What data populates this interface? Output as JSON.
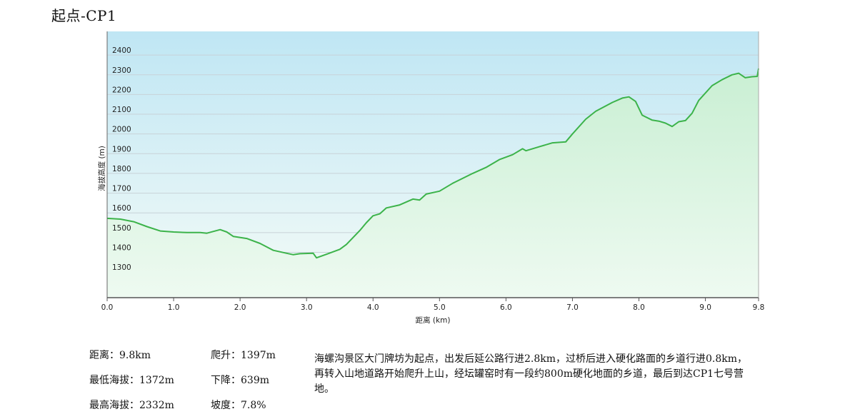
{
  "header": {
    "title": "起点-CP1"
  },
  "stats": {
    "distance": "距离：9.8km",
    "climb": "爬升：1397m",
    "min_elevation": "最低海拔：1372m",
    "descent": "下降：639m",
    "max_elevation": "最高海拔：2332m",
    "grade": "坡度：7.8%"
  },
  "description": "海螺沟景区大门牌坊为起点，出发后延公路行进2.8km，过桥后进入硬化路面的乡道行进0.8km，再转入山地道路开始爬升上山，经坛罐窑时有一段约800m硬化地面的乡道，最后到达CP1七号营地。",
  "colors": {
    "line": "#3cb34a",
    "grid": "#c8d2d8",
    "sky_top": "#bfe6f4",
    "ground_bottom": "#e9f8ec"
  },
  "chart_data": {
    "type": "area",
    "xlabel": "距离 (km)",
    "ylabel": "海拔高度 (m)",
    "xlim": [
      0,
      9.8
    ],
    "ylim": [
      1170,
      2520
    ],
    "x_ticks": [
      {
        "v": 0,
        "label": "0.0"
      },
      {
        "v": 1,
        "label": "1.0"
      },
      {
        "v": 2,
        "label": "2.0"
      },
      {
        "v": 3,
        "label": "3.0"
      },
      {
        "v": 4,
        "label": "4.0"
      },
      {
        "v": 5,
        "label": "5.0"
      },
      {
        "v": 6,
        "label": "6.0"
      },
      {
        "v": 7,
        "label": "7.0"
      },
      {
        "v": 8,
        "label": "8.0"
      },
      {
        "v": 9,
        "label": "9.0"
      },
      {
        "v": 9.8,
        "label": "9.8"
      }
    ],
    "y_ticks": [
      {
        "v": 1300,
        "label": "1300"
      },
      {
        "v": 1400,
        "label": "1400"
      },
      {
        "v": 1500,
        "label": "1500"
      },
      {
        "v": 1600,
        "label": "1600"
      },
      {
        "v": 1700,
        "label": "1700"
      },
      {
        "v": 1800,
        "label": "1800"
      },
      {
        "v": 1900,
        "label": "1900"
      },
      {
        "v": 2000,
        "label": "2000"
      },
      {
        "v": 2100,
        "label": "2100"
      },
      {
        "v": 2200,
        "label": "2200"
      },
      {
        "v": 2300,
        "label": "2300"
      },
      {
        "v": 2400,
        "label": "2400"
      }
    ],
    "grid": true,
    "series": [
      {
        "points": [
          [
            0,
            1572
          ],
          [
            0.2,
            1568
          ],
          [
            0.4,
            1555
          ],
          [
            0.6,
            1530
          ],
          [
            0.8,
            1508
          ],
          [
            1.0,
            1503
          ],
          [
            1.2,
            1500
          ],
          [
            1.4,
            1500
          ],
          [
            1.5,
            1497
          ],
          [
            1.7,
            1515
          ],
          [
            1.8,
            1503
          ],
          [
            1.9,
            1480
          ],
          [
            2.1,
            1470
          ],
          [
            2.3,
            1445
          ],
          [
            2.5,
            1410
          ],
          [
            2.7,
            1395
          ],
          [
            2.8,
            1388
          ],
          [
            2.9,
            1393
          ],
          [
            3.1,
            1395
          ],
          [
            3.15,
            1372
          ],
          [
            3.3,
            1390
          ],
          [
            3.5,
            1415
          ],
          [
            3.6,
            1440
          ],
          [
            3.8,
            1510
          ],
          [
            3.9,
            1550
          ],
          [
            4.0,
            1585
          ],
          [
            4.1,
            1595
          ],
          [
            4.2,
            1625
          ],
          [
            4.4,
            1640
          ],
          [
            4.6,
            1670
          ],
          [
            4.7,
            1665
          ],
          [
            4.8,
            1695
          ],
          [
            5.0,
            1710
          ],
          [
            5.2,
            1750
          ],
          [
            5.5,
            1800
          ],
          [
            5.7,
            1830
          ],
          [
            5.9,
            1870
          ],
          [
            6.1,
            1895
          ],
          [
            6.25,
            1925
          ],
          [
            6.3,
            1915
          ],
          [
            6.5,
            1935
          ],
          [
            6.7,
            1955
          ],
          [
            6.9,
            1960
          ],
          [
            7.0,
            2000
          ],
          [
            7.2,
            2075
          ],
          [
            7.35,
            2115
          ],
          [
            7.6,
            2160
          ],
          [
            7.75,
            2182
          ],
          [
            7.85,
            2188
          ],
          [
            7.95,
            2165
          ],
          [
            8.05,
            2095
          ],
          [
            8.2,
            2070
          ],
          [
            8.3,
            2065
          ],
          [
            8.4,
            2055
          ],
          [
            8.5,
            2038
          ],
          [
            8.6,
            2062
          ],
          [
            8.7,
            2068
          ],
          [
            8.8,
            2105
          ],
          [
            8.9,
            2170
          ],
          [
            9.1,
            2245
          ],
          [
            9.25,
            2275
          ],
          [
            9.4,
            2300
          ],
          [
            9.5,
            2308
          ],
          [
            9.6,
            2285
          ],
          [
            9.7,
            2290
          ],
          [
            9.78,
            2292
          ],
          [
            9.8,
            2332
          ]
        ]
      }
    ]
  }
}
